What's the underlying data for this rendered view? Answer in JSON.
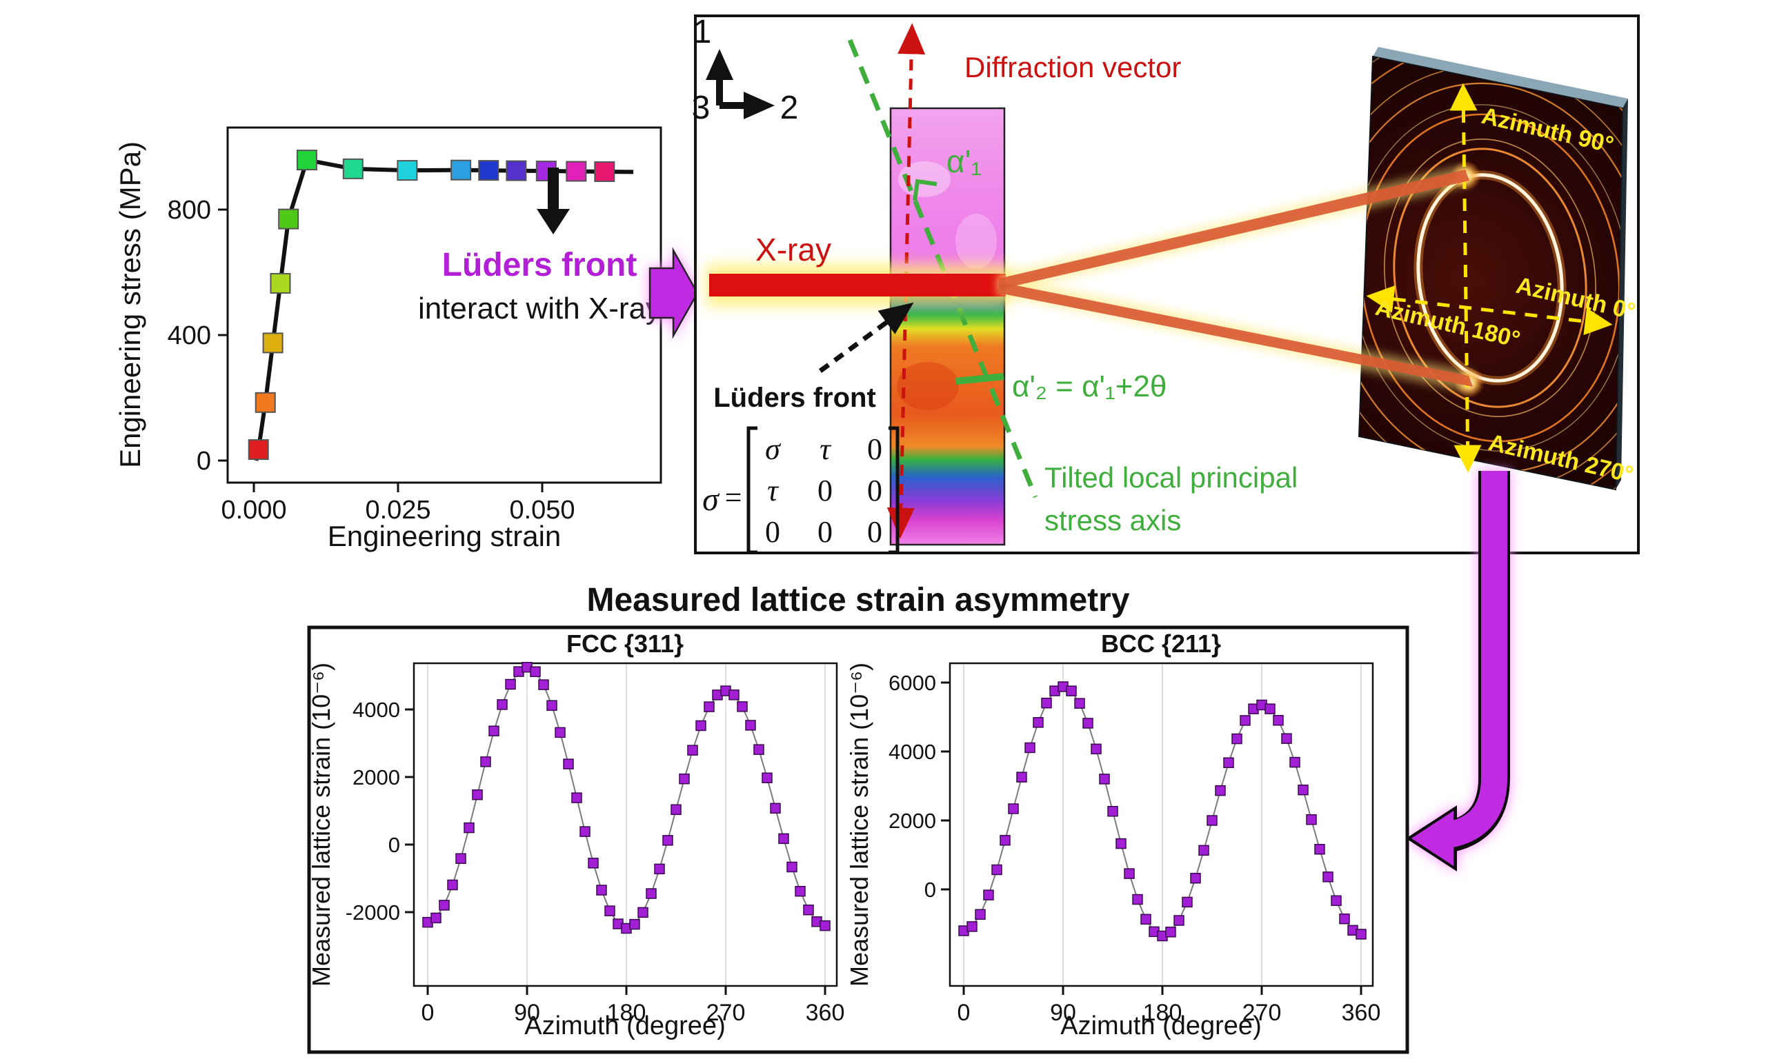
{
  "colors": {
    "accent_purple": "#b21fd6",
    "flow_arrow_purple": "#bf2ce2",
    "flow_arrow_glow": "#ff8bff",
    "annotation_green": "#3fae3c",
    "annotation_red": "#cc1111",
    "detector_yellow": "#ffe81e",
    "marker_purple": "#a21fd6",
    "curve_black": "#111111"
  },
  "annotations": {
    "luders_front": "Lüders front",
    "interact": "interact with X-ray"
  },
  "bottom_title": "Measured lattice strain asymmetry",
  "schematic": {
    "axis_1": "1",
    "axis_2": "2",
    "axis_3": "3",
    "xray_label": "X-ray",
    "diffraction_vector_label": "Diffraction vector",
    "alpha1_label": "α'₁",
    "alpha2_label": "α'₂ = α'₁+2θ",
    "tilt_label_line1": "Tilted local principal",
    "tilt_label_line2": "stress axis",
    "luders_label": "Lüders front",
    "matrix": {
      "lhs": "σ",
      "eq": "=",
      "rows": [
        [
          "σ",
          "τ",
          "0"
        ],
        [
          "τ",
          "0",
          "0"
        ],
        [
          "0",
          "0",
          "0"
        ]
      ]
    },
    "detector": {
      "azimuth_90": "Azimuth 90°",
      "azimuth_0": "Azimuth 0°",
      "azimuth_180": "Azimuth 180°",
      "azimuth_270": "Azimuth 270°"
    }
  },
  "chart_data": [
    {
      "type": "line",
      "title": "",
      "xlabel": "Engineering strain",
      "ylabel": "Engineering stress (MPa)",
      "xlim": [
        -0.004,
        0.0705
      ],
      "ylim": [
        -65,
        1065
      ],
      "x_ticks": [
        0.0,
        0.025,
        0.05
      ],
      "y_ticks": [
        0,
        400,
        800
      ],
      "grid": false,
      "line_color": "#111111",
      "points": [
        {
          "strain": 0.0008,
          "stress": 35,
          "color": "#e02020"
        },
        {
          "strain": 0.002,
          "stress": 185,
          "color": "#f07820"
        },
        {
          "strain": 0.0033,
          "stress": 375,
          "color": "#ddb010"
        },
        {
          "strain": 0.0046,
          "stress": 565,
          "color": "#a8d820"
        },
        {
          "strain": 0.006,
          "stress": 770,
          "color": "#50c818"
        },
        {
          "strain": 0.0092,
          "stress": 958,
          "color": "#22d33c"
        },
        {
          "strain": 0.0172,
          "stress": 930,
          "color": "#1ed98e"
        },
        {
          "strain": 0.0266,
          "stress": 925,
          "color": "#1fd3dc"
        },
        {
          "strain": 0.0359,
          "stress": 926,
          "color": "#2b9fe0"
        },
        {
          "strain": 0.0407,
          "stress": 925,
          "color": "#2038cc"
        },
        {
          "strain": 0.0455,
          "stress": 924,
          "color": "#5530cc"
        },
        {
          "strain": 0.0507,
          "stress": 923,
          "color": "#a428e0"
        },
        {
          "strain": 0.0559,
          "stress": 922,
          "color": "#e020b8"
        },
        {
          "strain": 0.0608,
          "stress": 921,
          "color": "#e81870"
        }
      ],
      "line_end": {
        "strain": 0.0658,
        "stress": 920
      }
    },
    {
      "type": "scatter-line",
      "title": "FCC {311}",
      "xlabel": "Azimuth (degree)",
      "ylabel": "Measured lattice strain (10⁻⁶)",
      "x_ticks": [
        0,
        90,
        180,
        270,
        360
      ],
      "y_ticks": [
        -2000,
        0,
        2000,
        4000
      ],
      "grid": true,
      "legend": "none",
      "marker_color": "#a21fd6",
      "x": [
        0,
        7.5,
        15,
        22.5,
        30,
        37.5,
        45,
        52.5,
        60,
        67.5,
        75,
        82.5,
        90,
        97.5,
        105,
        112.5,
        120,
        127.5,
        135,
        142.5,
        150,
        157.5,
        165,
        172.5,
        180,
        187.5,
        195,
        202.5,
        210,
        217.5,
        225,
        232.5,
        240,
        247.5,
        255,
        262.5,
        270,
        277.5,
        285,
        292.5,
        300,
        307.5,
        315,
        322.5,
        330,
        337.5,
        345,
        352.5,
        360
      ],
      "y": [
        -2300,
        -2172,
        -1794,
        -1194,
        -413,
        498,
        1475,
        2452,
        3363,
        4144,
        4744,
        5121,
        5250,
        5118,
        4732,
        4118,
        3318,
        2385,
        1385,
        385,
        -548,
        -1348,
        -1962,
        -2348,
        -2480,
        -2360,
        -2009,
        -1450,
        -722,
        125,
        1035,
        1945,
        2793,
        3521,
        4079,
        4430,
        4550,
        4432,
        4084,
        3532,
        2813,
        1974,
        1075,
        176,
        -663,
        -1382,
        -1934,
        -2282,
        -2400
      ]
    },
    {
      "type": "scatter-line",
      "title": "BCC {211}",
      "xlabel": "Azimuth (degree)",
      "ylabel": "Measured lattice strain (10⁻⁶)",
      "x_ticks": [
        0,
        90,
        180,
        270,
        360
      ],
      "y_ticks": [
        0,
        2000,
        4000,
        6000
      ],
      "grid": true,
      "legend": "none",
      "marker_color": "#a21fd6",
      "x": [
        0,
        7.5,
        15,
        22.5,
        30,
        37.5,
        45,
        52.5,
        60,
        67.5,
        75,
        82.5,
        90,
        97.5,
        105,
        112.5,
        120,
        127.5,
        135,
        142.5,
        150,
        157.5,
        165,
        172.5,
        180,
        187.5,
        195,
        202.5,
        210,
        217.5,
        225,
        232.5,
        240,
        247.5,
        255,
        262.5,
        270,
        277.5,
        285,
        292.5,
        300,
        307.5,
        315,
        322.5,
        330,
        337.5,
        345,
        352.5,
        360
      ],
      "y": [
        -1200,
        -1079,
        -726,
        -163,
        570,
        1424,
        2340,
        3256,
        4110,
        4843,
        5406,
        5759,
        5880,
        5757,
        5396,
        4821,
        4073,
        3201,
        2265,
        1329,
        458,
        -291,
        -866,
        -1227,
        -1350,
        -1236,
        -901,
        -369,
        325,
        1133,
        2000,
        2867,
        3675,
        4369,
        4901,
        5236,
        5350,
        5237,
        4905,
        4376,
        3688,
        2885,
        2025,
        1165,
        363,
        -326,
        -854,
        -1187,
        -1300
      ]
    }
  ]
}
